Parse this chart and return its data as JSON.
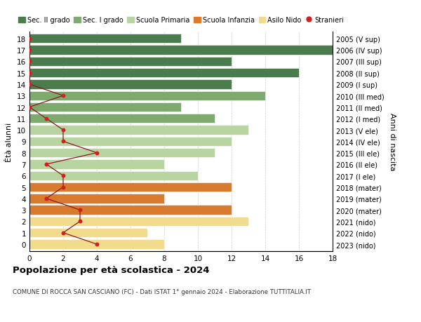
{
  "ages": [
    18,
    17,
    16,
    15,
    14,
    13,
    12,
    11,
    10,
    9,
    8,
    7,
    6,
    5,
    4,
    3,
    2,
    1,
    0
  ],
  "right_labels": [
    "2005 (V sup)",
    "2006 (IV sup)",
    "2007 (III sup)",
    "2008 (II sup)",
    "2009 (I sup)",
    "2010 (III med)",
    "2011 (II med)",
    "2012 (I med)",
    "2013 (V ele)",
    "2014 (IV ele)",
    "2015 (III ele)",
    "2016 (II ele)",
    "2017 (I ele)",
    "2018 (mater)",
    "2019 (mater)",
    "2020 (mater)",
    "2021 (nido)",
    "2022 (nido)",
    "2023 (nido)"
  ],
  "bar_values": [
    9,
    18,
    12,
    16,
    12,
    14,
    9,
    11,
    13,
    12,
    11,
    8,
    10,
    12,
    8,
    12,
    13,
    7,
    8
  ],
  "bar_colors": [
    "#4a7c4e",
    "#4a7c4e",
    "#4a7c4e",
    "#4a7c4e",
    "#4a7c4e",
    "#7dab6e",
    "#7dab6e",
    "#7dab6e",
    "#b8d4a0",
    "#b8d4a0",
    "#b8d4a0",
    "#b8d4a0",
    "#b8d4a0",
    "#d97b2e",
    "#d97b2e",
    "#d97b2e",
    "#f0dc8c",
    "#f0dc8c",
    "#f0dc8c"
  ],
  "stranieri_x": [
    0,
    0,
    0,
    0,
    0,
    2,
    0,
    1,
    2,
    2,
    4,
    1,
    2,
    2,
    1,
    3,
    3,
    2,
    4
  ],
  "legend_labels": [
    "Sec. II grado",
    "Sec. I grado",
    "Scuola Primaria",
    "Scuola Infanzia",
    "Asilo Nido",
    "Stranieri"
  ],
  "legend_colors": [
    "#4a7c4e",
    "#7dab6e",
    "#b8d4a0",
    "#d97b2e",
    "#f0dc8c",
    "#cc2222"
  ],
  "title": "Popolazione per età scolastica - 2024",
  "subtitle": "COMUNE DI ROCCA SAN CASCIANO (FC) - Dati ISTAT 1° gennaio 2024 - Elaborazione TUTTITALIA.IT",
  "ylabel_left": "Ètà alunni",
  "ylabel_right": "Anni di nascita",
  "xlim": [
    0,
    18
  ],
  "background_color": "#ffffff"
}
